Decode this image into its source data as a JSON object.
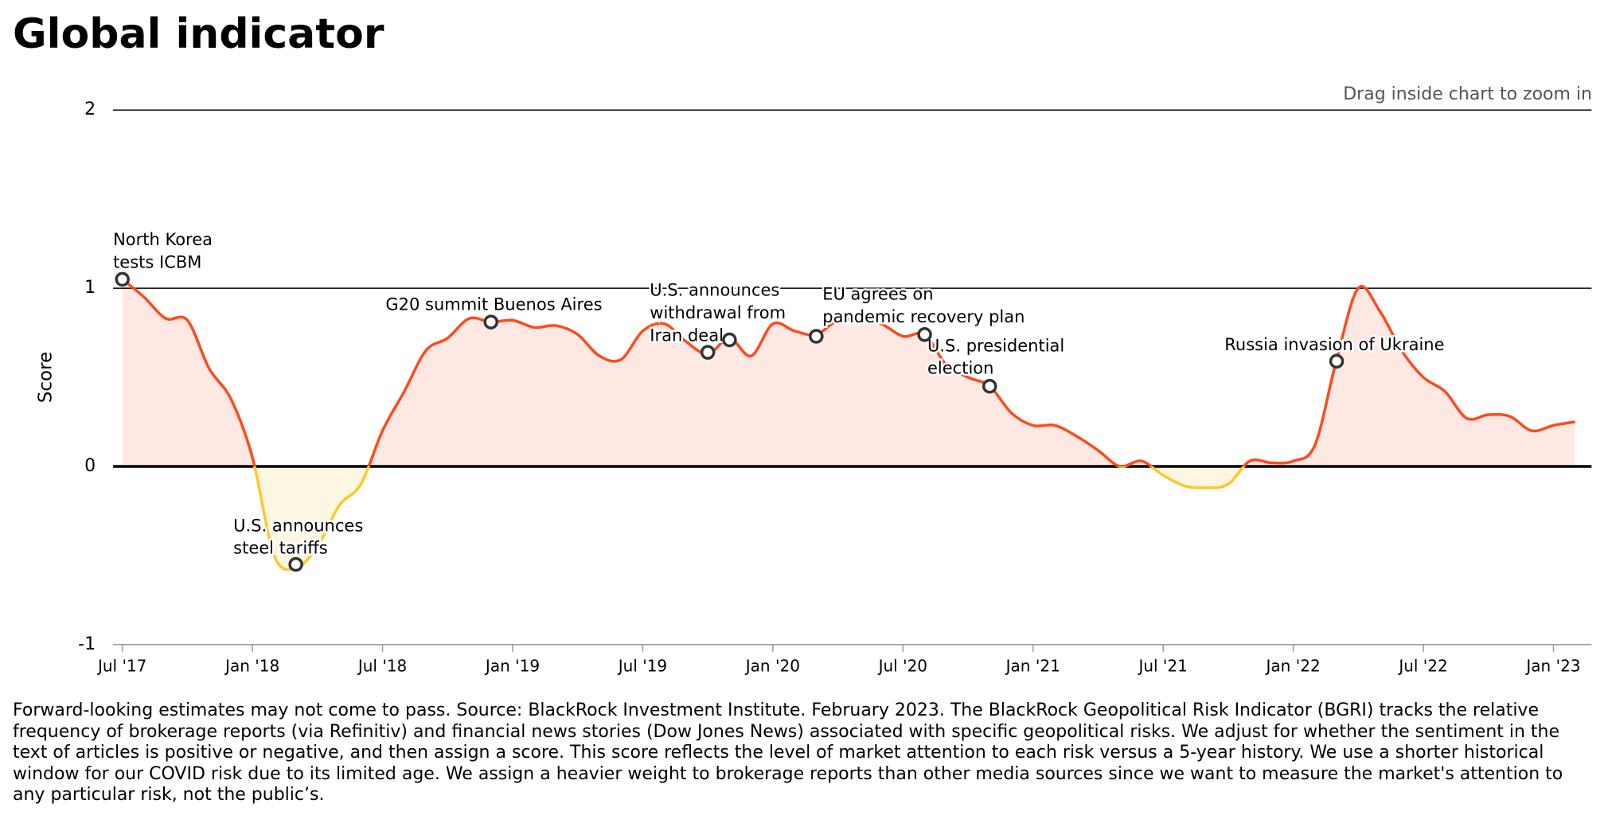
{
  "chart_data": {
    "type": "line",
    "title": "Global indicator",
    "hint": "Drag inside chart to zoom in",
    "y_label": "Score",
    "color": "#ff4a1c",
    "negative_color": "#ffc72c",
    "fill_color": "#fde8e4",
    "negative_fill_color": "#fdf6e0",
    "ylim": [
      -1,
      2
    ],
    "yticks": [
      -1,
      0,
      1,
      2
    ],
    "xticks": [
      {
        "value": "2017-07",
        "label": "Jul '17"
      },
      {
        "value": "2018-01",
        "label": "Jan '18"
      },
      {
        "value": "2018-07",
        "label": "Jul '18"
      },
      {
        "value": "2019-01",
        "label": "Jan '19"
      },
      {
        "value": "2019-07",
        "label": "Jul '19"
      },
      {
        "value": "2020-01",
        "label": "Jan '20"
      },
      {
        "value": "2020-07",
        "label": "Jul '20"
      },
      {
        "value": "2021-01",
        "label": "Jan '21"
      },
      {
        "value": "2021-07",
        "label": "Jul '21"
      },
      {
        "value": "2022-01",
        "label": "Jan '22"
      },
      {
        "value": "2022-07",
        "label": "Jul '22"
      },
      {
        "value": "2023-01",
        "label": "Jan '23"
      }
    ],
    "x": [
      "2017-07",
      "2017-08",
      "2017-09",
      "2017-10",
      "2017-11",
      "2017-12",
      "2018-01",
      "2018-02",
      "2018-03",
      "2018-04",
      "2018-05",
      "2018-06",
      "2018-07",
      "2018-08",
      "2018-09",
      "2018-10",
      "2018-11",
      "2018-12",
      "2019-01",
      "2019-02",
      "2019-03",
      "2019-04",
      "2019-05",
      "2019-06",
      "2019-07",
      "2019-08",
      "2019-09",
      "2019-10",
      "2019-11",
      "2019-12",
      "2020-01",
      "2020-02",
      "2020-03",
      "2020-04",
      "2020-05",
      "2020-06",
      "2020-07",
      "2020-08",
      "2020-09",
      "2020-10",
      "2020-11",
      "2020-12",
      "2021-01",
      "2021-02",
      "2021-03",
      "2021-04",
      "2021-05",
      "2021-06",
      "2021-07",
      "2021-08",
      "2021-09",
      "2021-10",
      "2021-11",
      "2021-12",
      "2022-01",
      "2022-02",
      "2022-03",
      "2022-04",
      "2022-05",
      "2022-06",
      "2022-07",
      "2022-08",
      "2022-09",
      "2022-10",
      "2022-11",
      "2022-12",
      "2023-01",
      "2023-02"
    ],
    "values": [
      1.05,
      0.95,
      0.83,
      0.82,
      0.55,
      0.38,
      0.05,
      -0.5,
      -0.57,
      -0.45,
      -0.22,
      -0.1,
      0.2,
      0.42,
      0.65,
      0.72,
      0.83,
      0.81,
      0.82,
      0.78,
      0.79,
      0.74,
      0.62,
      0.6,
      0.76,
      0.8,
      0.7,
      0.63,
      0.72,
      0.62,
      0.8,
      0.76,
      0.74,
      0.82,
      0.82,
      0.8,
      0.73,
      0.74,
      0.57,
      0.5,
      0.45,
      0.3,
      0.23,
      0.23,
      0.17,
      0.09,
      0.0,
      0.03,
      -0.05,
      -0.11,
      -0.12,
      -0.1,
      0.03,
      0.02,
      0.03,
      0.12,
      0.6,
      1.0,
      0.87,
      0.65,
      0.5,
      0.42,
      0.27,
      0.29,
      0.28,
      0.2,
      0.23,
      0.25
    ],
    "markers": [
      {
        "x": "2017-07",
        "y": 1.05
      },
      {
        "x": "2018-03",
        "y": -0.55
      },
      {
        "x": "2018-12",
        "y": 0.81
      },
      {
        "x": "2019-10",
        "y": 0.64
      },
      {
        "x": "2019-11",
        "y": 0.71
      },
      {
        "x": "2020-03",
        "y": 0.73
      },
      {
        "x": "2020-08",
        "y": 0.74
      },
      {
        "x": "2020-11",
        "y": 0.45
      },
      {
        "x": "2022-03",
        "y": 0.59
      }
    ],
    "annotations": [
      {
        "lines": [
          "North Korea",
          "tests ICBM"
        ]
      },
      {
        "lines": [
          "U.S. announces",
          "steel tariffs"
        ]
      },
      {
        "lines": [
          "G20 summit Buenos Aires"
        ]
      },
      {
        "lines": [
          "U.S. announces",
          "withdrawal from",
          "Iran deal"
        ]
      },
      {
        "lines": [
          "EU agrees on",
          "pandemic recovery plan"
        ]
      },
      {
        "lines": [
          "U.S. presidential",
          "election"
        ]
      },
      {
        "lines": [
          "Russia invasion of Ukraine"
        ]
      }
    ]
  },
  "footnote": "Forward-looking estimates may not come to pass. Source: BlackRock Investment Institute. February 2023. The BlackRock Geopolitical Risk Indicator (BGRI) tracks the relative frequency of brokerage reports (via Refinitiv) and financial news stories (Dow Jones News) associated with specific geopolitical risks. We adjust for whether the sentiment in the text of articles is positive or negative, and then assign a score. This score reflects the level of market attention to each risk versus a 5-year history. We use a shorter historical window for our COVID risk due to its limited age. We assign a heavier weight to brokerage reports than other media sources since we want to measure the market's attention to any particular risk, not the public’s."
}
